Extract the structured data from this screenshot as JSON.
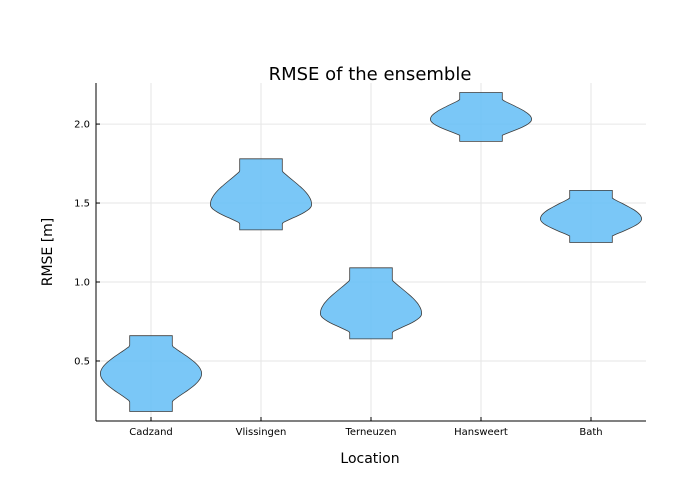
{
  "chart_data": {
    "type": "violin",
    "title": "RMSE of the ensemble",
    "xlabel": "Location",
    "ylabel": "RMSE [m]",
    "categories": [
      "Cadzand",
      "Vlissingen",
      "Terneuzen",
      "Hansweert",
      "Bath"
    ],
    "violins": [
      {
        "category": "Cadzand",
        "min": 0.18,
        "max": 0.66,
        "bulge": 0.42,
        "max_half_width": 0.46
      },
      {
        "category": "Vlissingen",
        "min": 1.33,
        "max": 1.78,
        "bulge": 1.49,
        "max_half_width": 0.46
      },
      {
        "category": "Terneuzen",
        "min": 0.64,
        "max": 1.09,
        "bulge": 0.8,
        "max_half_width": 0.46
      },
      {
        "category": "Hansweert",
        "min": 1.89,
        "max": 2.2,
        "bulge": 2.03,
        "max_half_width": 0.46
      },
      {
        "category": "Bath",
        "min": 1.25,
        "max": 1.58,
        "bulge": 1.4,
        "max_half_width": 0.46
      }
    ],
    "yticks": [
      0.5,
      1.0,
      1.5,
      2.0
    ],
    "ytick_labels": [
      "0.5",
      "1.0",
      "1.5",
      "2.0"
    ],
    "ylim": [
      0.12,
      2.26
    ],
    "grid": true,
    "legend": false,
    "colors": {
      "fill": "#63bdf6",
      "stroke": "#3d3d3d",
      "grid": "#e6e6e6"
    }
  }
}
